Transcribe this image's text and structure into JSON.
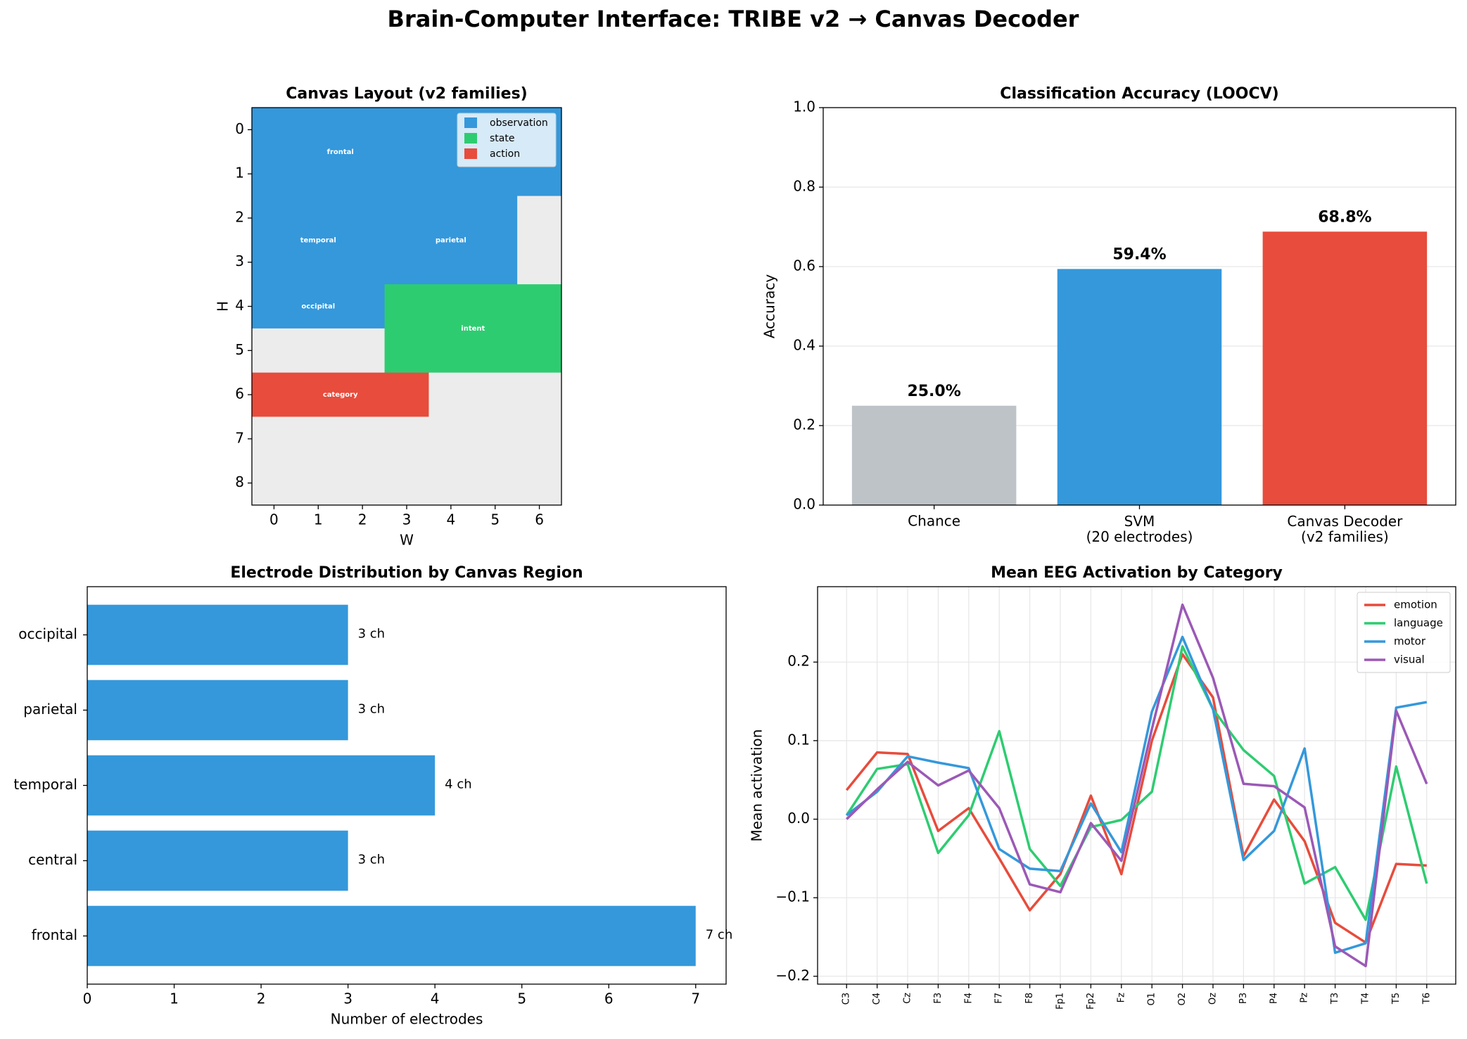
{
  "title": "Brain-Computer Interface: TRIBE v2 → Canvas Decoder",
  "chart_data": [
    {
      "type": "heatmap",
      "title": "Canvas Layout (v2 families)",
      "xlabel": "W",
      "ylabel": "H",
      "xlim": [
        -0.5,
        6.5
      ],
      "ylim": [
        8.5,
        -0.5
      ],
      "xticks": [
        0,
        1,
        2,
        3,
        4,
        5,
        6
      ],
      "yticks": [
        0,
        1,
        2,
        3,
        4,
        5,
        6,
        7,
        8
      ],
      "empty_color": "#ececec",
      "families": [
        {
          "name": "observation",
          "color": "#3498db"
        },
        {
          "name": "state",
          "color": "#2ecc71"
        },
        {
          "name": "action",
          "color": "#e74c3c"
        }
      ],
      "cells": [
        [
          "observation",
          "observation",
          "observation",
          "observation",
          "observation",
          "observation",
          "observation"
        ],
        [
          "observation",
          "observation",
          "observation",
          "observation",
          "observation",
          "observation",
          "observation"
        ],
        [
          "observation",
          "observation",
          "observation",
          "observation",
          "observation",
          "observation",
          null
        ],
        [
          "observation",
          "observation",
          "observation",
          "observation",
          "observation",
          "observation",
          null
        ],
        [
          "observation",
          "observation",
          "observation",
          "state",
          "state",
          "state",
          "state"
        ],
        [
          null,
          null,
          null,
          "state",
          "state",
          "state",
          "state"
        ],
        [
          "action",
          "action",
          "action",
          "action",
          null,
          null,
          null
        ],
        [
          null,
          null,
          null,
          null,
          null,
          null,
          null
        ],
        [
          null,
          null,
          null,
          null,
          null,
          null,
          null
        ]
      ],
      "labels": [
        {
          "text": "frontal",
          "x": 1.5,
          "y": 0.5
        },
        {
          "text": "temporal",
          "x": 1,
          "y": 2.5
        },
        {
          "text": "parietal",
          "x": 4,
          "y": 2.5
        },
        {
          "text": "occipital",
          "x": 1,
          "y": 4
        },
        {
          "text": "intent",
          "x": 4.5,
          "y": 4.5
        },
        {
          "text": "category",
          "x": 1.5,
          "y": 6
        }
      ],
      "legend": "upper right"
    },
    {
      "type": "bar",
      "title": "Classification Accuracy (LOOCV)",
      "ylabel": "Accuracy",
      "categories": [
        "Chance",
        "SVM\n(20 electrodes)",
        "Canvas Decoder\n(v2 families)"
      ],
      "values": [
        0.25,
        0.594,
        0.688
      ],
      "value_labels": [
        "25.0%",
        "59.4%",
        "68.8%"
      ],
      "colors": [
        "#bdc3c7",
        "#3498db",
        "#e74c3c"
      ],
      "ylim": [
        0,
        1
      ],
      "yticks": [
        {
          "value": 0,
          "label": "0.0"
        },
        0.2,
        0.4,
        0.6,
        0.8,
        {
          "value": 1,
          "label": "1.0"
        }
      ],
      "grid": true
    },
    {
      "type": "barh",
      "title": "Electrode Distribution by Canvas Region",
      "xlabel": "Number of electrodes",
      "categories": [
        "frontal",
        "central",
        "temporal",
        "parietal",
        "occipital"
      ],
      "values": [
        7,
        3,
        4,
        3,
        3
      ],
      "value_labels": [
        "7 ch",
        "3 ch",
        "4 ch",
        "3 ch",
        "3 ch"
      ],
      "color": "#3498db",
      "xlim": [
        0,
        7.35
      ],
      "xticks": [
        0,
        1,
        2,
        3,
        4,
        5,
        6,
        7
      ]
    },
    {
      "type": "line",
      "title": "Mean EEG Activation by Category",
      "ylabel": "Mean activation",
      "categories": [
        "C3",
        "C4",
        "Cz",
        "F3",
        "F4",
        "F7",
        "F8",
        "Fp1",
        "Fp2",
        "Fz",
        "O1",
        "O2",
        "Oz",
        "P3",
        "P4",
        "Pz",
        "T3",
        "T4",
        "T5",
        "T6"
      ],
      "series": [
        {
          "name": "emotion",
          "color": "#e74c3c",
          "values": [
            0.037,
            0.085,
            0.083,
            -0.015,
            0.014,
            -0.05,
            -0.116,
            -0.07,
            0.03,
            -0.07,
            0.1,
            0.21,
            0.155,
            -0.047,
            0.025,
            -0.028,
            -0.132,
            -0.157,
            -0.057,
            -0.059
          ]
        },
        {
          "name": "language",
          "color": "#2ecc71",
          "values": [
            0.005,
            0.064,
            0.07,
            -0.043,
            0.005,
            0.112,
            -0.038,
            -0.085,
            -0.01,
            -0.001,
            0.035,
            0.22,
            0.14,
            0.088,
            0.055,
            -0.082,
            -0.061,
            -0.128,
            0.067,
            -0.082
          ]
        },
        {
          "name": "motor",
          "color": "#3498db",
          "values": [
            0.005,
            0.035,
            0.08,
            0.072,
            0.065,
            -0.038,
            -0.063,
            -0.066,
            0.02,
            -0.042,
            0.137,
            0.232,
            0.14,
            -0.052,
            -0.015,
            0.09,
            -0.17,
            -0.158,
            0.142,
            0.149
          ]
        },
        {
          "name": "visual",
          "color": "#9b59b6",
          "values": [
            0.0,
            0.038,
            0.073,
            0.043,
            0.062,
            0.014,
            -0.083,
            -0.093,
            -0.005,
            -0.053,
            0.115,
            0.273,
            0.18,
            0.045,
            0.042,
            0.015,
            -0.162,
            -0.187,
            0.138,
            0.045
          ]
        }
      ],
      "ylim": [
        -0.21,
        0.296
      ],
      "yticks": [
        {
          "value": -0.2,
          "label": "−0.2"
        },
        {
          "value": -0.1,
          "label": "−0.1"
        },
        {
          "value": 0,
          "label": "0.0"
        },
        0.1,
        0.2
      ],
      "grid": true,
      "legend": "upper right"
    }
  ]
}
